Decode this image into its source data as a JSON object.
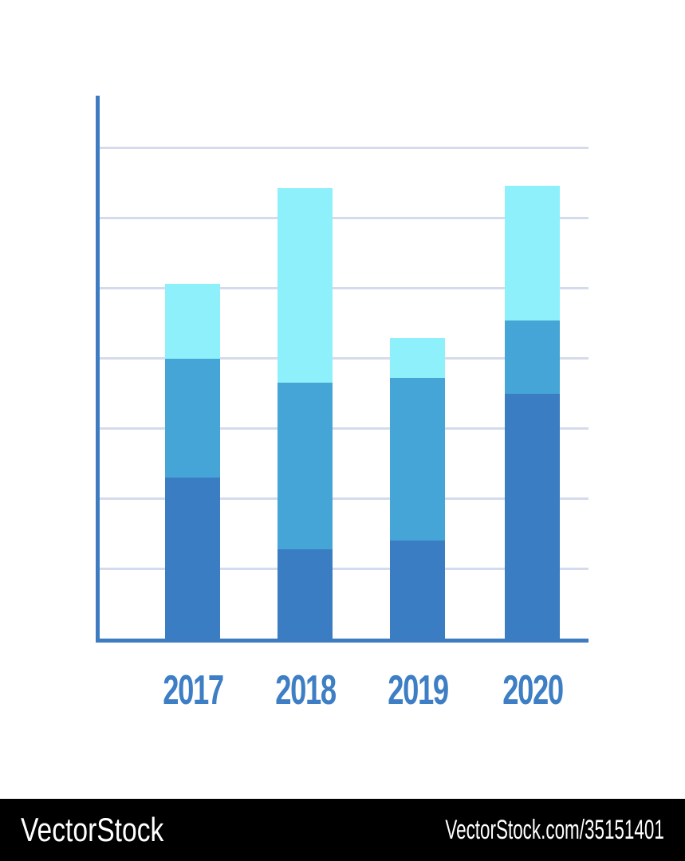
{
  "page": {
    "background": "#ffffff"
  },
  "watermark": {
    "brand": "VectorStock",
    "url": "VectorStock.com/35151401",
    "bar_color": "#000000",
    "text_color": "#ffffff"
  },
  "chart_data": {
    "type": "bar",
    "stacked": true,
    "title": "",
    "xlabel": "",
    "ylabel": "",
    "categories": [
      "2017",
      "2018",
      "2019",
      "2020"
    ],
    "series": [
      {
        "name": "bottom-dark-blue",
        "color": "#3b7dc2",
        "values": [
          2.3,
          1.27,
          1.4,
          3.49
        ]
      },
      {
        "name": "middle-medium-blue",
        "color": "#45a5d6",
        "values": [
          1.7,
          2.38,
          2.32,
          1.05
        ]
      },
      {
        "name": "top-light-cyan",
        "color": "#8ef0fb",
        "values": [
          1.07,
          2.78,
          0.57,
          1.93
        ]
      }
    ],
    "ylim": [
      0,
      7.75
    ],
    "gridline_count": 7,
    "grid_on": true,
    "legend": "none",
    "axis_color": "#3e7cc2",
    "grid_color": "#d4dbec",
    "tick_label_color": "#3d7ec5"
  }
}
